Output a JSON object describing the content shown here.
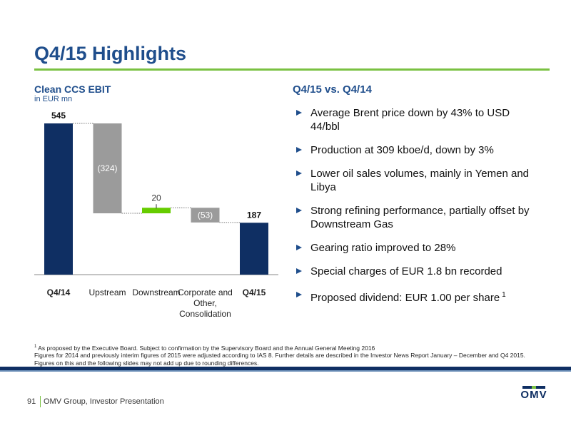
{
  "header": {
    "title": "Q4/15 Highlights"
  },
  "chart_data": {
    "type": "waterfall",
    "title": "Clean CCS EBIT",
    "subtitle": "in EUR mn",
    "categories": [
      "Q4/14",
      "Upstream",
      "Downstream",
      "Corporate and Other, Consolidation",
      "Q4/15"
    ],
    "values": [
      545,
      -324,
      20,
      -53,
      187
    ],
    "value_labels": [
      "545",
      "(324)",
      "20",
      "(53)",
      "187"
    ],
    "measures": [
      "total",
      "relative",
      "relative",
      "relative",
      "total"
    ],
    "colors": {
      "total": "#0f2f63",
      "increase": "#66cc00",
      "decrease": "#9b9b9b"
    }
  },
  "highlights": {
    "title": "Q4/15 vs. Q4/14",
    "bullets": [
      "Average Brent price down by 43% to USD 44/bbl",
      "Production at 309 kboe/d, down by 3%",
      "Lower oil sales volumes, mainly in Yemen and Libya",
      "Strong refining performance, partially offset by Downstream Gas",
      "Gearing ratio improved to 28%",
      "Special charges of EUR 1.8 bn recorded",
      "Proposed dividend: EUR 1.00 per share"
    ],
    "last_bullet_note": "1"
  },
  "footnotes": {
    "mark": "1",
    "lines": [
      "As proposed by the Executive Board. Subject to confirmation by the Supervisory Board and the Annual General Meeting 2016",
      "Figures for 2014 and previously interim figures of 2015 were adjusted according to IAS 8. Further details are described in the Investor News Report January – December and Q4 2015.",
      "Figures on this and the following slides may not add up due to rounding differences."
    ]
  },
  "footer": {
    "page": "91",
    "text": "OMV Group, Investor Presentation",
    "logo": "OMV"
  }
}
